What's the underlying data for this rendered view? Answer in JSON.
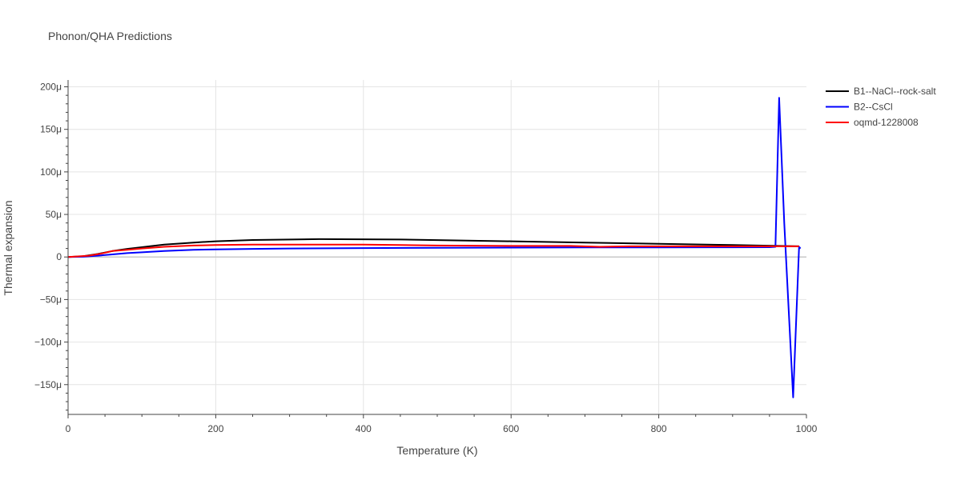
{
  "chart_data": {
    "type": "line",
    "title": "Phonon/QHA Predictions",
    "xlabel": "Temperature (K)",
    "ylabel": "Thermal expansion",
    "xlim": [
      0,
      1000
    ],
    "ylim": [
      -185,
      208
    ],
    "x_ticks": [
      0,
      200,
      400,
      600,
      800,
      1000
    ],
    "x_tick_labels": [
      "0",
      "200",
      "400",
      "600",
      "800",
      "1000"
    ],
    "y_ticks": [
      -150,
      -100,
      -50,
      0,
      50,
      100,
      150,
      200
    ],
    "y_tick_labels": [
      "−150μ",
      "−100μ",
      "−50μ",
      "0",
      "50μ",
      "100μ",
      "150μ",
      "200μ"
    ],
    "grid": true,
    "legend_position": "top-right",
    "series": [
      {
        "name": "B1--NaCl--rock-salt",
        "color": "#000000",
        "x": [
          0,
          20,
          40,
          60,
          80,
          100,
          130,
          170,
          200,
          250,
          340,
          450,
          600,
          700,
          800,
          900,
          990
        ],
        "y": [
          0,
          0.8,
          3.5,
          7,
          9.5,
          11.5,
          14.5,
          17,
          18.5,
          20,
          21,
          20.5,
          18.5,
          17,
          15.5,
          14,
          12.5
        ]
      },
      {
        "name": "B2--CsCl",
        "color": "#0000ff",
        "x": [
          0,
          20,
          40,
          60,
          80,
          100,
          130,
          170,
          200,
          250,
          300,
          400,
          500,
          600,
          700,
          800,
          900,
          950,
          958,
          963,
          970,
          982,
          990,
          992
        ],
        "y": [
          0,
          0.3,
          1.5,
          3,
          4.5,
          5.5,
          7,
          8.5,
          9,
          9.5,
          10,
          10.5,
          10.8,
          11,
          11.2,
          11.3,
          11.4,
          11.5,
          12,
          187,
          40,
          -165,
          12,
          10
        ]
      },
      {
        "name": "oqmd-1228008",
        "color": "#ff0000",
        "x": [
          0,
          28,
          45,
          60,
          80,
          100,
          130,
          170,
          200,
          250,
          300,
          400,
          450,
          500,
          600,
          680,
          720,
          760,
          800,
          900,
          950,
          990
        ],
        "y": [
          0,
          1.5,
          4,
          7,
          8.5,
          10,
          12,
          13.5,
          14,
          14.5,
          14.5,
          14.5,
          14,
          13.5,
          13,
          13,
          12,
          12.5,
          12.5,
          12.5,
          12.5,
          12.5
        ]
      }
    ]
  }
}
